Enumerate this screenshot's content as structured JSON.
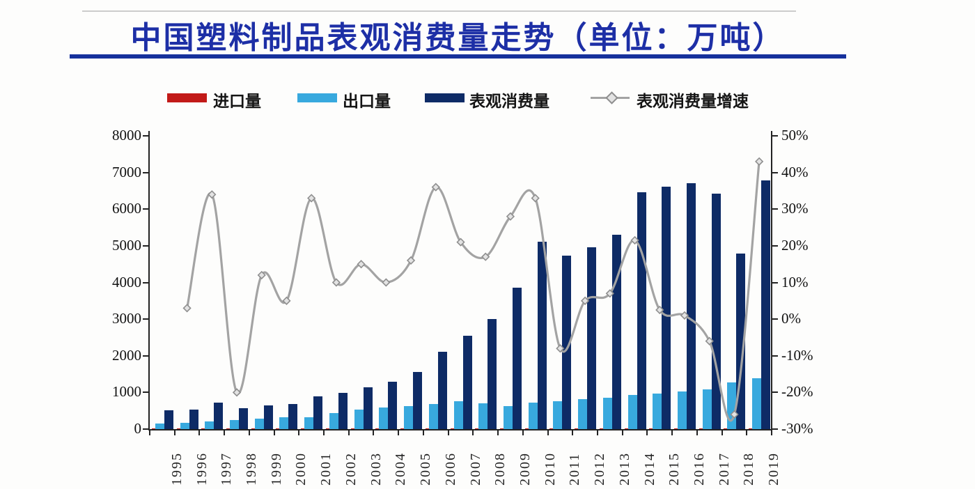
{
  "title": {
    "text": "中国塑料制品表观消费量走势（单位：万吨）"
  },
  "legend": {
    "items": [
      {
        "label": "进口量",
        "type": "bar",
        "color": "#c21a18"
      },
      {
        "label": "出口量",
        "type": "bar",
        "color": "#38a9de"
      },
      {
        "label": "表观消费量",
        "type": "bar",
        "color": "#0e2b66"
      },
      {
        "label": "表观消费量增速",
        "type": "line",
        "color": "#a3a3a3"
      }
    ]
  },
  "chart_data": {
    "type": "bar",
    "subtype": "grouped-bars-with-secondary-axis-line",
    "title": "中国塑料制品表观消费量走势（单位：万吨）",
    "unit_left": "万吨",
    "unit_right": "%",
    "grid": false,
    "legend_position": "top",
    "categories": [
      "1995",
      "1996",
      "1997",
      "1998",
      "1999",
      "2000",
      "2001",
      "2002",
      "2003",
      "2004",
      "2005",
      "2006",
      "2007",
      "2008",
      "2009",
      "2010",
      "2011",
      "2012",
      "2013",
      "2014",
      "2015",
      "2016",
      "2017",
      "2018",
      "2019"
    ],
    "series": [
      {
        "name": "进口量",
        "type": "bar",
        "axis": "left",
        "color": "#c21a18",
        "values": [
          10,
          10,
          10,
          10,
          10,
          10,
          10,
          10,
          10,
          10,
          10,
          10,
          10,
          10,
          10,
          10,
          10,
          10,
          10,
          10,
          10,
          10,
          10,
          10,
          10
        ]
      },
      {
        "name": "出口量",
        "type": "bar",
        "axis": "left",
        "color": "#38a9de",
        "values": [
          150,
          165,
          210,
          240,
          280,
          320,
          330,
          430,
          530,
          590,
          630,
          680,
          760,
          700,
          630,
          730,
          760,
          810,
          860,
          930,
          960,
          1020,
          1090,
          1280,
          1380
        ]
      },
      {
        "name": "表观消费量",
        "type": "bar",
        "axis": "left",
        "color": "#0e2b66",
        "values": [
          520,
          535,
          720,
          575,
          645,
          675,
          900,
          990,
          1140,
          1300,
          1565,
          2100,
          2550,
          3000,
          3860,
          5120,
          4740,
          4960,
          5310,
          6460,
          6620,
          6700,
          6420,
          4780,
          6780
        ]
      },
      {
        "name": "表观消费量增速",
        "type": "line",
        "axis": "right",
        "color": "#a3a3a3",
        "values": [
          null,
          3,
          34,
          -20,
          12,
          5,
          33,
          10,
          15,
          10,
          16,
          36,
          21,
          17,
          28,
          33,
          -8,
          5,
          7,
          21.5,
          2.5,
          1,
          -6,
          -26,
          43
        ]
      }
    ],
    "left_axis": {
      "min": 0,
      "max": 8000,
      "step": 1000,
      "tick_labels": [
        "8000",
        "7000",
        "6000",
        "5000",
        "4000",
        "3000",
        "2000",
        "1000",
        "0"
      ]
    },
    "right_axis": {
      "min": -30,
      "max": 50,
      "step": 10,
      "tick_labels": [
        "50%",
        "40%",
        "30%",
        "20%",
        "10%",
        "0%",
        "-10%",
        "-20%",
        "-30%"
      ]
    }
  }
}
